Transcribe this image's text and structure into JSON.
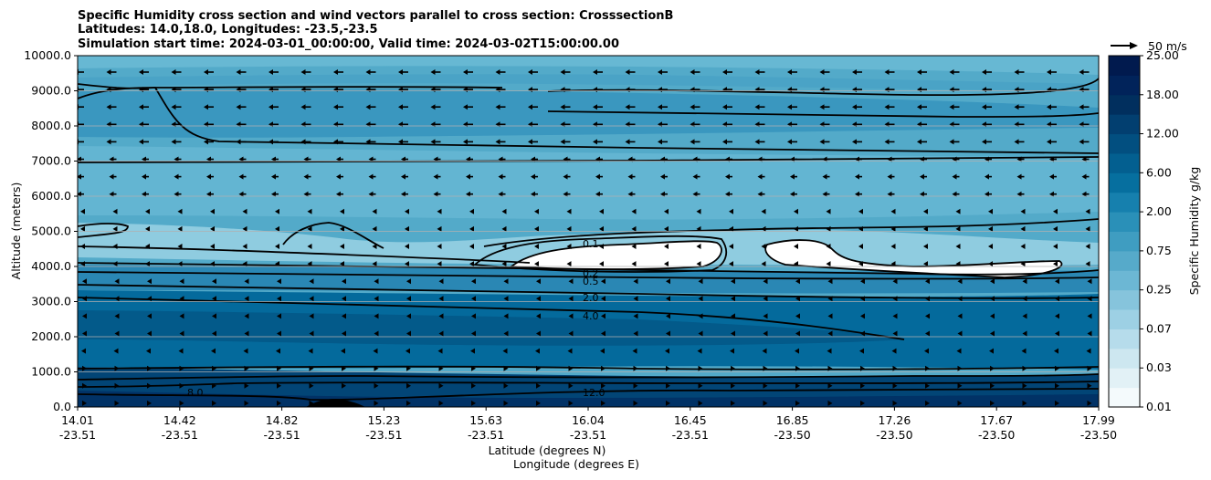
{
  "chart_data": {
    "type": "contour",
    "title_lines": [
      "Specific Humidity cross section and wind vectors parallel to cross section: CrosssectionB",
      "Latitudes: 14.0,18.0, Longitudes: -23.5,-23.5",
      "Simulation start time: 2024-03-01_00:00:00, Valid time: 2024-03-02T15:00:00.00"
    ],
    "ylabel": "Altitude (meters)",
    "xlabel_lines": [
      "Latitude (degrees N)",
      "Longitude (degrees E)"
    ],
    "ylim": [
      0,
      10000
    ],
    "yticks": [
      "0.0",
      "1000.0",
      "2000.0",
      "3000.0",
      "4000.0",
      "5000.0",
      "6000.0",
      "7000.0",
      "8000.0",
      "9000.0",
      "10000.0"
    ],
    "x_ticks": [
      {
        "lat": "14.01",
        "lon": "-23.51"
      },
      {
        "lat": "14.42",
        "lon": "-23.51"
      },
      {
        "lat": "14.82",
        "lon": "-23.51"
      },
      {
        "lat": "15.23",
        "lon": "-23.51"
      },
      {
        "lat": "15.63",
        "lon": "-23.51"
      },
      {
        "lat": "16.04",
        "lon": "-23.51"
      },
      {
        "lat": "16.45",
        "lon": "-23.51"
      },
      {
        "lat": "16.85",
        "lon": "-23.50"
      },
      {
        "lat": "17.26",
        "lon": "-23.50"
      },
      {
        "lat": "17.67",
        "lon": "-23.50"
      },
      {
        "lat": "17.99",
        "lon": "-23.50"
      }
    ],
    "horizontal_grid": true,
    "colorbar": {
      "label": "Specific Humidity g/kg",
      "ticks": [
        "25.00",
        "18.00",
        "12.00",
        "6.00",
        "2.00",
        "0.75",
        "0.25",
        "0.07",
        "0.03",
        "0.01"
      ]
    },
    "quiver_key": "50 m/s",
    "contour_labels": [
      "0.1",
      "0.2",
      "0.5",
      "2.0",
      "4.0",
      "8.0",
      "12.0"
    ]
  }
}
